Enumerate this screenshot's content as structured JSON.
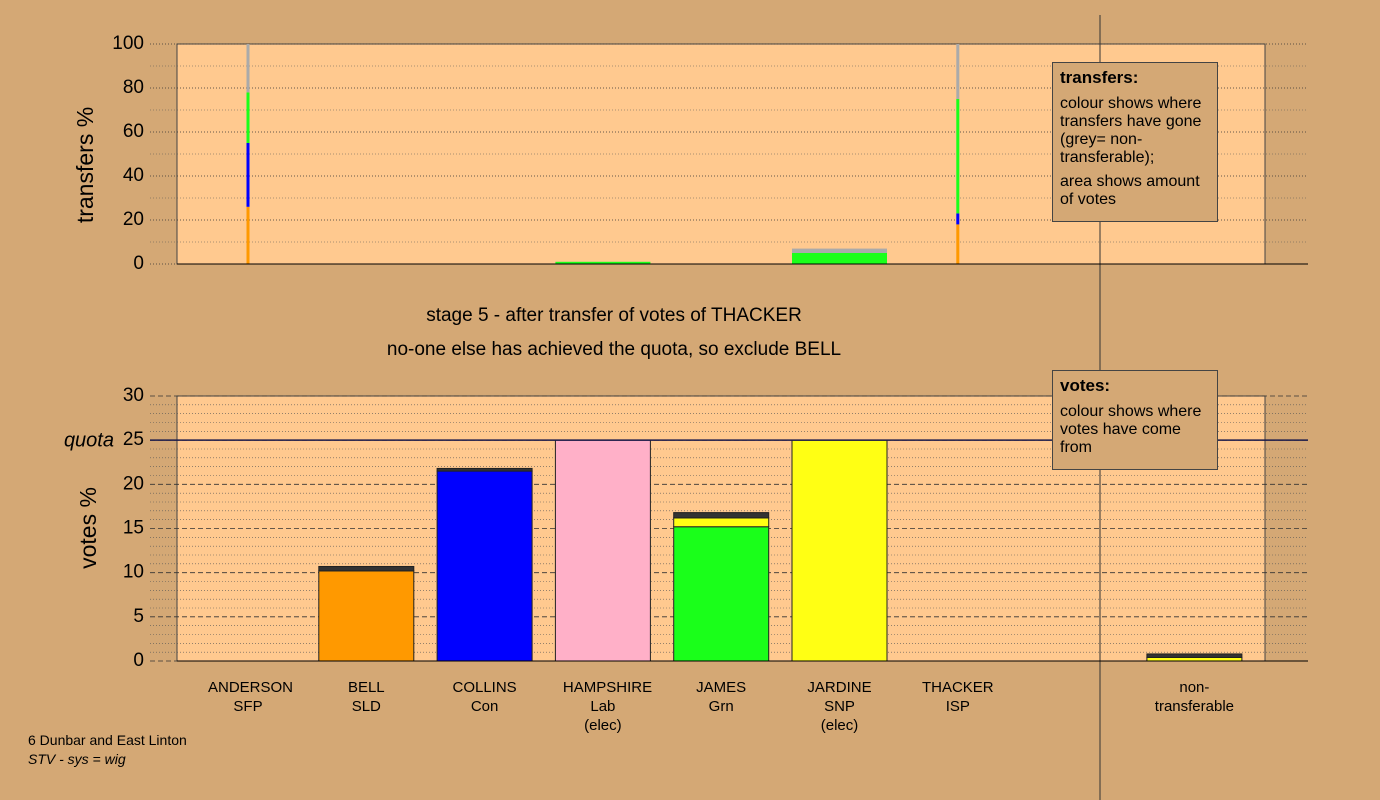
{
  "chart_data": [
    {
      "type": "stacked_bar",
      "ylabel": "transfers %",
      "ylim": [
        0,
        100
      ],
      "yticks": [
        0,
        20,
        40,
        60,
        80,
        100
      ],
      "minor_yticks": [
        10,
        30,
        50,
        70,
        90
      ],
      "series": [
        {
          "color": "#ff9900",
          "values": [
            26,
            0,
            0,
            0,
            0,
            0,
            18,
            null,
            0
          ]
        },
        {
          "color": "#0000ff",
          "values": [
            29,
            0,
            0,
            0,
            0,
            0,
            5,
            null,
            0
          ]
        },
        {
          "color": "#1aff1a",
          "values": [
            23,
            0,
            0,
            1,
            0,
            5,
            52,
            null,
            0
          ]
        },
        {
          "color": "#aaaaaa",
          "values": [
            22,
            0,
            0,
            0,
            0,
            2,
            25,
            null,
            0
          ]
        }
      ],
      "note": {
        "title": "transfers:",
        "lines": [
          "colour shows where transfers have gone (grey= non-transferable);",
          "area shows amount of votes"
        ]
      }
    },
    {
      "type": "stacked_bar",
      "title": "stage 5 - after transfer of votes of THACKER",
      "subtitle": "no-one else has achieved the quota, so exclude BELL",
      "ylabel": "votes %",
      "ylim": [
        0,
        30
      ],
      "yticks": [
        0,
        5,
        10,
        15,
        20,
        25,
        30
      ],
      "minor_yticks": [
        1,
        2,
        3,
        4,
        6,
        7,
        8,
        9,
        11,
        12,
        13,
        14,
        16,
        17,
        18,
        19,
        21,
        22,
        23,
        24,
        26,
        27,
        28,
        29
      ],
      "quota": 25,
      "quota_label": "quota",
      "categories": [
        "ANDERSON",
        "BELL",
        "COLLINS",
        "HAMPSHIRE",
        "JAMES",
        "JARDINE",
        "THACKER",
        null,
        "non-transferable"
      ],
      "parties": [
        "SFP",
        "SLD",
        "Con",
        "Lab",
        "Grn",
        "SNP",
        "ISP",
        null,
        null
      ],
      "notes": [
        null,
        null,
        null,
        "(elec)",
        null,
        "(elec)",
        null,
        null,
        null
      ],
      "series": [
        {
          "colors": [
            "#000000",
            "#ff9900",
            "#0000ff",
            "#ffb0c8",
            "#1aff1a",
            "#ffff14",
            "#000000",
            null,
            "#ffff14"
          ],
          "values": [
            0,
            10.2,
            21.5,
            25,
            15.2,
            25,
            0,
            null,
            0
          ]
        },
        {
          "color": "#ffff14",
          "values": [
            0,
            0,
            0,
            0,
            1,
            0,
            0,
            null,
            0.4
          ]
        },
        {
          "color": "#333333",
          "values": [
            0,
            0.5,
            0.3,
            0,
            0.6,
            0,
            0,
            null,
            0.4
          ]
        }
      ],
      "note": {
        "title": "votes:",
        "lines": [
          "colour shows where votes have come from"
        ]
      }
    }
  ],
  "footer": {
    "constituency": "6 Dunbar and East Linton",
    "system": "STV - sys = wig"
  }
}
